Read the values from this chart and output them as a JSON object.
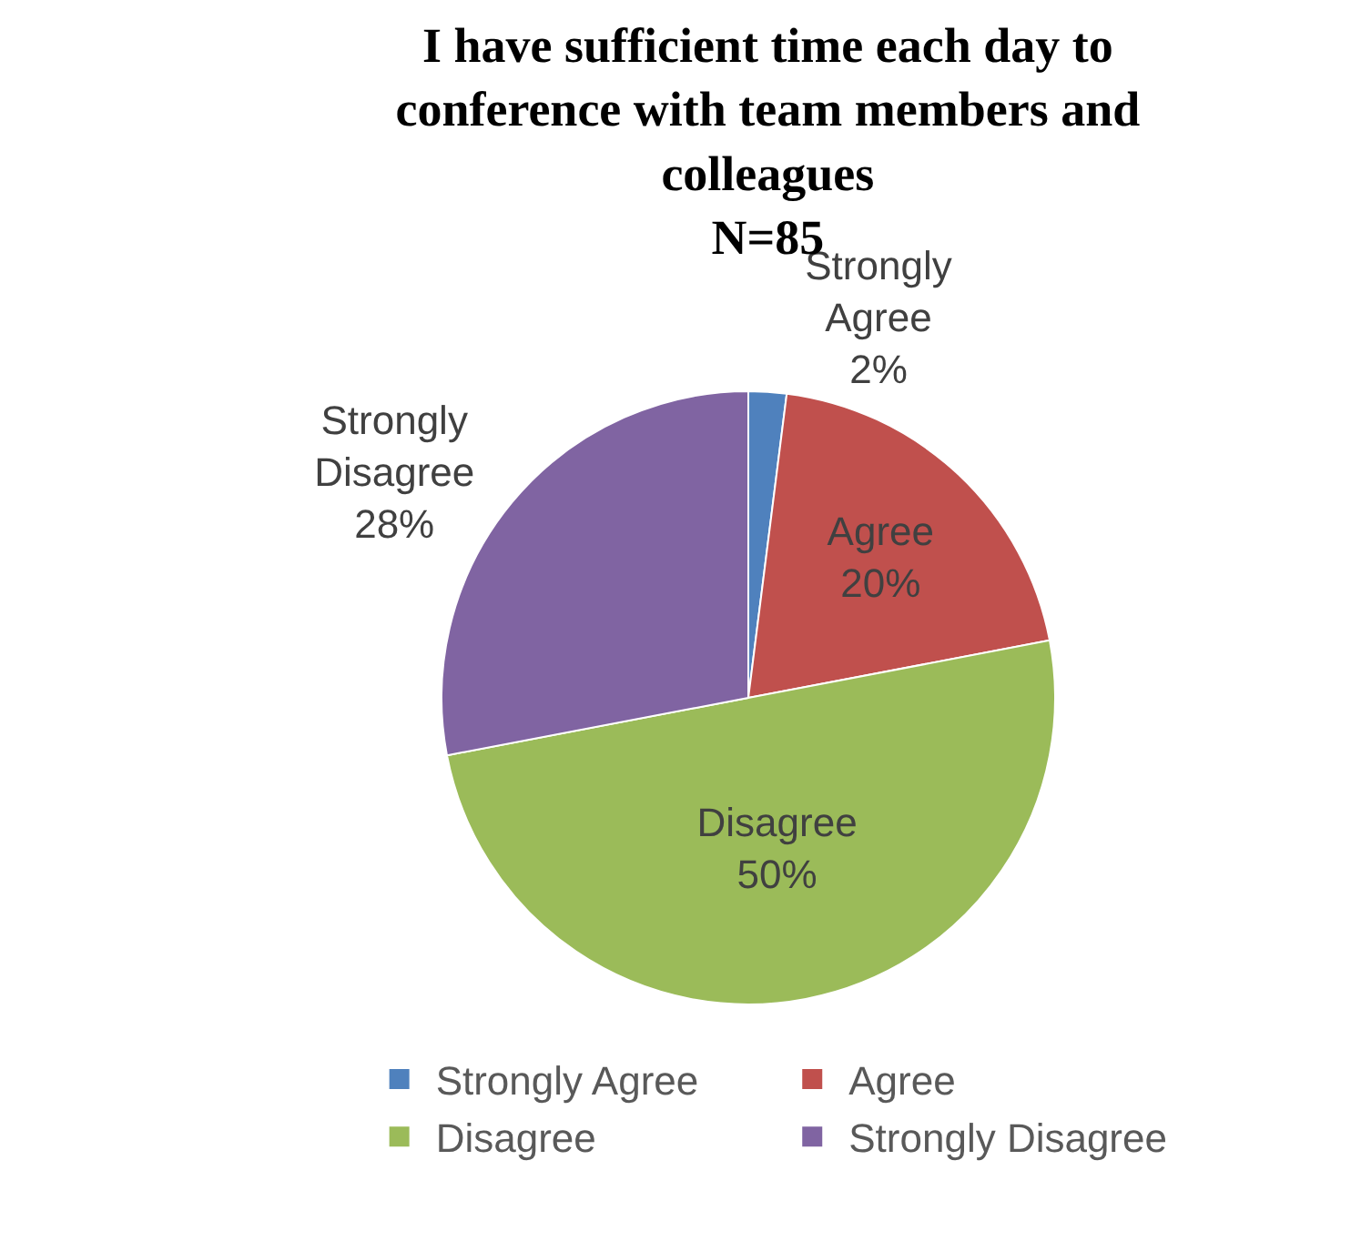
{
  "chart_data": {
    "type": "pie",
    "title": "I have sufficient time each day to conference with team members and colleagues",
    "subtitle": "N=85",
    "categories": [
      "Strongly Agree",
      "Agree",
      "Disagree",
      "Strongly Disagree"
    ],
    "values": [
      2,
      20,
      50,
      28
    ],
    "value_labels": [
      "2%",
      "20%",
      "50%",
      "28%"
    ],
    "colors": [
      "#4f81bd",
      "#c0504d",
      "#9bbb59",
      "#8064a2"
    ],
    "legend": "bottom"
  }
}
